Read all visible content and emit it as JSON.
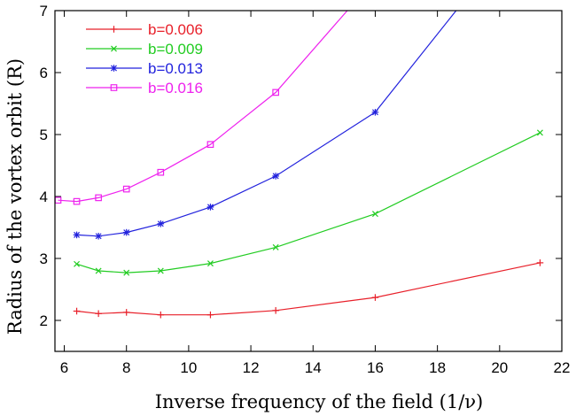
{
  "chart_data": {
    "type": "line",
    "xlabel": "Inverse frequency of the field (1/ν)",
    "ylabel": "Radius of the vortex orbit (R)",
    "xlim": [
      5.7,
      22
    ],
    "ylim": [
      1.5,
      7
    ],
    "xticks": [
      "6",
      "8",
      "10",
      "12",
      "14",
      "16",
      "18",
      "20",
      "22"
    ],
    "yticks": [
      "2",
      "3",
      "4",
      "5",
      "6",
      "7"
    ],
    "grid": false,
    "legend_position": "top-left",
    "series": [
      {
        "name": "b=0.006",
        "color": "#e8202a",
        "marker": "plus",
        "x": [
          6.4,
          7.1,
          8.0,
          9.1,
          10.7,
          12.8,
          16.0,
          21.3
        ],
        "y": [
          2.15,
          2.11,
          2.13,
          2.09,
          2.09,
          2.16,
          2.37,
          2.93
        ]
      },
      {
        "name": "b=0.009",
        "color": "#22cc22",
        "marker": "cross",
        "x": [
          6.4,
          7.1,
          8.0,
          9.1,
          10.7,
          12.8,
          16.0,
          21.3
        ],
        "y": [
          2.91,
          2.8,
          2.77,
          2.8,
          2.92,
          3.18,
          3.72,
          5.03
        ]
      },
      {
        "name": "b=0.013",
        "color": "#2222dd",
        "marker": "star",
        "x": [
          6.4,
          7.1,
          8.0,
          9.1,
          10.7,
          12.8,
          16.0,
          18.6
        ],
        "y": [
          3.38,
          3.36,
          3.42,
          3.56,
          3.83,
          4.33,
          5.36,
          7.0
        ]
      },
      {
        "name": "b=0.016",
        "color": "#ee22ee",
        "marker": "square",
        "x": [
          5.8,
          6.4,
          7.1,
          8.0,
          9.1,
          10.7,
          12.8,
          15.1
        ],
        "y": [
          3.94,
          3.92,
          3.98,
          4.12,
          4.39,
          4.84,
          5.68,
          7.0
        ]
      }
    ]
  }
}
